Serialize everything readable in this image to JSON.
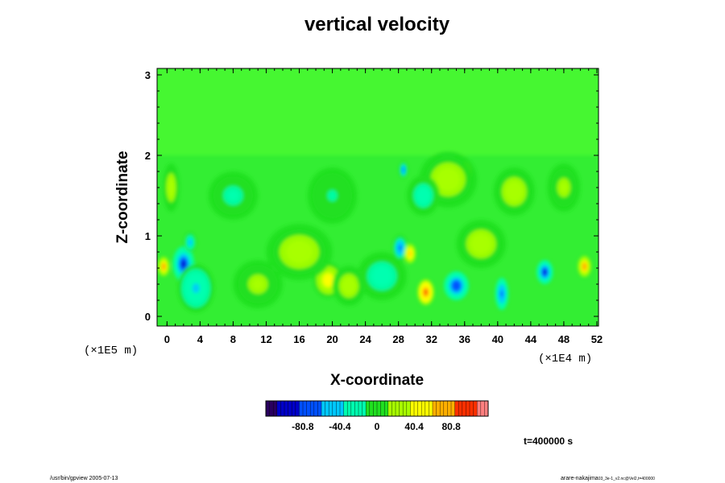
{
  "chart_data": {
    "type": "heatmap",
    "title": "vertical velocity",
    "xlabel": "X-coordinate",
    "ylabel": "Z-coordinate",
    "x_scale_label": "(×1E4 m)",
    "y_scale_label": "(×1E5 m)",
    "xlim": [
      -1.2,
      52.2
    ],
    "ylim": [
      -0.12,
      3.08
    ],
    "x_ticks": [
      "0",
      "4",
      "8",
      "12",
      "16",
      "20",
      "24",
      "28",
      "32",
      "36",
      "40",
      "44",
      "48",
      "52"
    ],
    "x_tick_values": [
      0,
      4,
      8,
      12,
      16,
      20,
      24,
      28,
      32,
      36,
      40,
      44,
      48,
      52
    ],
    "y_ticks": [
      "0",
      "1",
      "2",
      "3"
    ],
    "y_tick_values": [
      0,
      1,
      2,
      3
    ],
    "colorbar": {
      "range": [
        -121,
        121
      ],
      "tick_labels": [
        "-80.8",
        "-40.4",
        "0",
        "40.4",
        "80.8"
      ],
      "tick_values": [
        -80.8,
        -40.4,
        0,
        40.4,
        80.8
      ],
      "colors": [
        "#2a0060",
        "#0000c8",
        "#0050ff",
        "#00c8ff",
        "#00ffb0",
        "#20e020",
        "#a8ff00",
        "#ffff00",
        "#ffb000",
        "#ff3000",
        "#ff8080"
      ]
    },
    "anomalies": [
      {
        "x": 2.0,
        "z": 0.65,
        "value": -110,
        "sx": 1.3,
        "sz": 0.22
      },
      {
        "x": 2.8,
        "z": 0.92,
        "value": -70,
        "sx": 0.7,
        "sz": 0.12
      },
      {
        "x": 3.5,
        "z": 0.35,
        "value": -45,
        "sx": 2.2,
        "sz": 0.3
      },
      {
        "x": -0.4,
        "z": 0.62,
        "value": 95,
        "sx": 0.7,
        "sz": 0.12
      },
      {
        "x": 0.5,
        "z": 1.6,
        "value": 30,
        "sx": 1.0,
        "sz": 0.3
      },
      {
        "x": 19.5,
        "z": 0.45,
        "value": 55,
        "sx": 1.8,
        "sz": 0.22
      },
      {
        "x": 22.0,
        "z": 0.38,
        "value": 35,
        "sx": 2.0,
        "sz": 0.25
      },
      {
        "x": 16.0,
        "z": 0.8,
        "value": 25,
        "sx": 4.0,
        "sz": 0.35
      },
      {
        "x": 28.2,
        "z": 0.85,
        "value": -75,
        "sx": 0.9,
        "sz": 0.16
      },
      {
        "x": 29.4,
        "z": 0.78,
        "value": 90,
        "sx": 0.7,
        "sz": 0.12
      },
      {
        "x": 31.3,
        "z": 0.3,
        "value": 120,
        "sx": 1.0,
        "sz": 0.16
      },
      {
        "x": 35.0,
        "z": 0.38,
        "value": -100,
        "sx": 1.5,
        "sz": 0.18
      },
      {
        "x": 40.5,
        "z": 0.28,
        "value": -85,
        "sx": 0.8,
        "sz": 0.2
      },
      {
        "x": 45.7,
        "z": 0.55,
        "value": -105,
        "sx": 1.0,
        "sz": 0.15
      },
      {
        "x": 50.5,
        "z": 0.62,
        "value": 100,
        "sx": 0.8,
        "sz": 0.13
      },
      {
        "x": 28.6,
        "z": 1.82,
        "value": -75,
        "sx": 0.5,
        "sz": 0.1
      },
      {
        "x": 36.2,
        "z": 1.8,
        "value": 85,
        "sx": 0.7,
        "sz": 0.13
      },
      {
        "x": 34.0,
        "z": 1.7,
        "value": 35,
        "sx": 3.5,
        "sz": 0.35
      },
      {
        "x": 31.0,
        "z": 1.5,
        "value": -25,
        "sx": 2.0,
        "sz": 0.25
      },
      {
        "x": 42.0,
        "z": 1.55,
        "value": 30,
        "sx": 2.5,
        "sz": 0.3
      },
      {
        "x": 26.0,
        "z": 0.5,
        "value": -30,
        "sx": 3.0,
        "sz": 0.3
      },
      {
        "x": 8.0,
        "z": 1.5,
        "value": -20,
        "sx": 3.0,
        "sz": 0.3
      },
      {
        "x": 20.0,
        "z": 1.5,
        "value": -18,
        "sx": 3.0,
        "sz": 0.35
      },
      {
        "x": 48.0,
        "z": 1.6,
        "value": 22,
        "sx": 2.0,
        "sz": 0.3
      },
      {
        "x": 11.0,
        "z": 0.4,
        "value": 20,
        "sx": 3.0,
        "sz": 0.3
      },
      {
        "x": 38.0,
        "z": 0.9,
        "value": 25,
        "sx": 3.0,
        "sz": 0.3
      }
    ]
  },
  "time_label": "t=400000 s",
  "footer_left": "/usr/bin/gpview 2005-07-13",
  "footer_right": "arare-nakajima",
  "footer_right_small": "03_3e-1_v2.nc@Vel2,t=400000"
}
